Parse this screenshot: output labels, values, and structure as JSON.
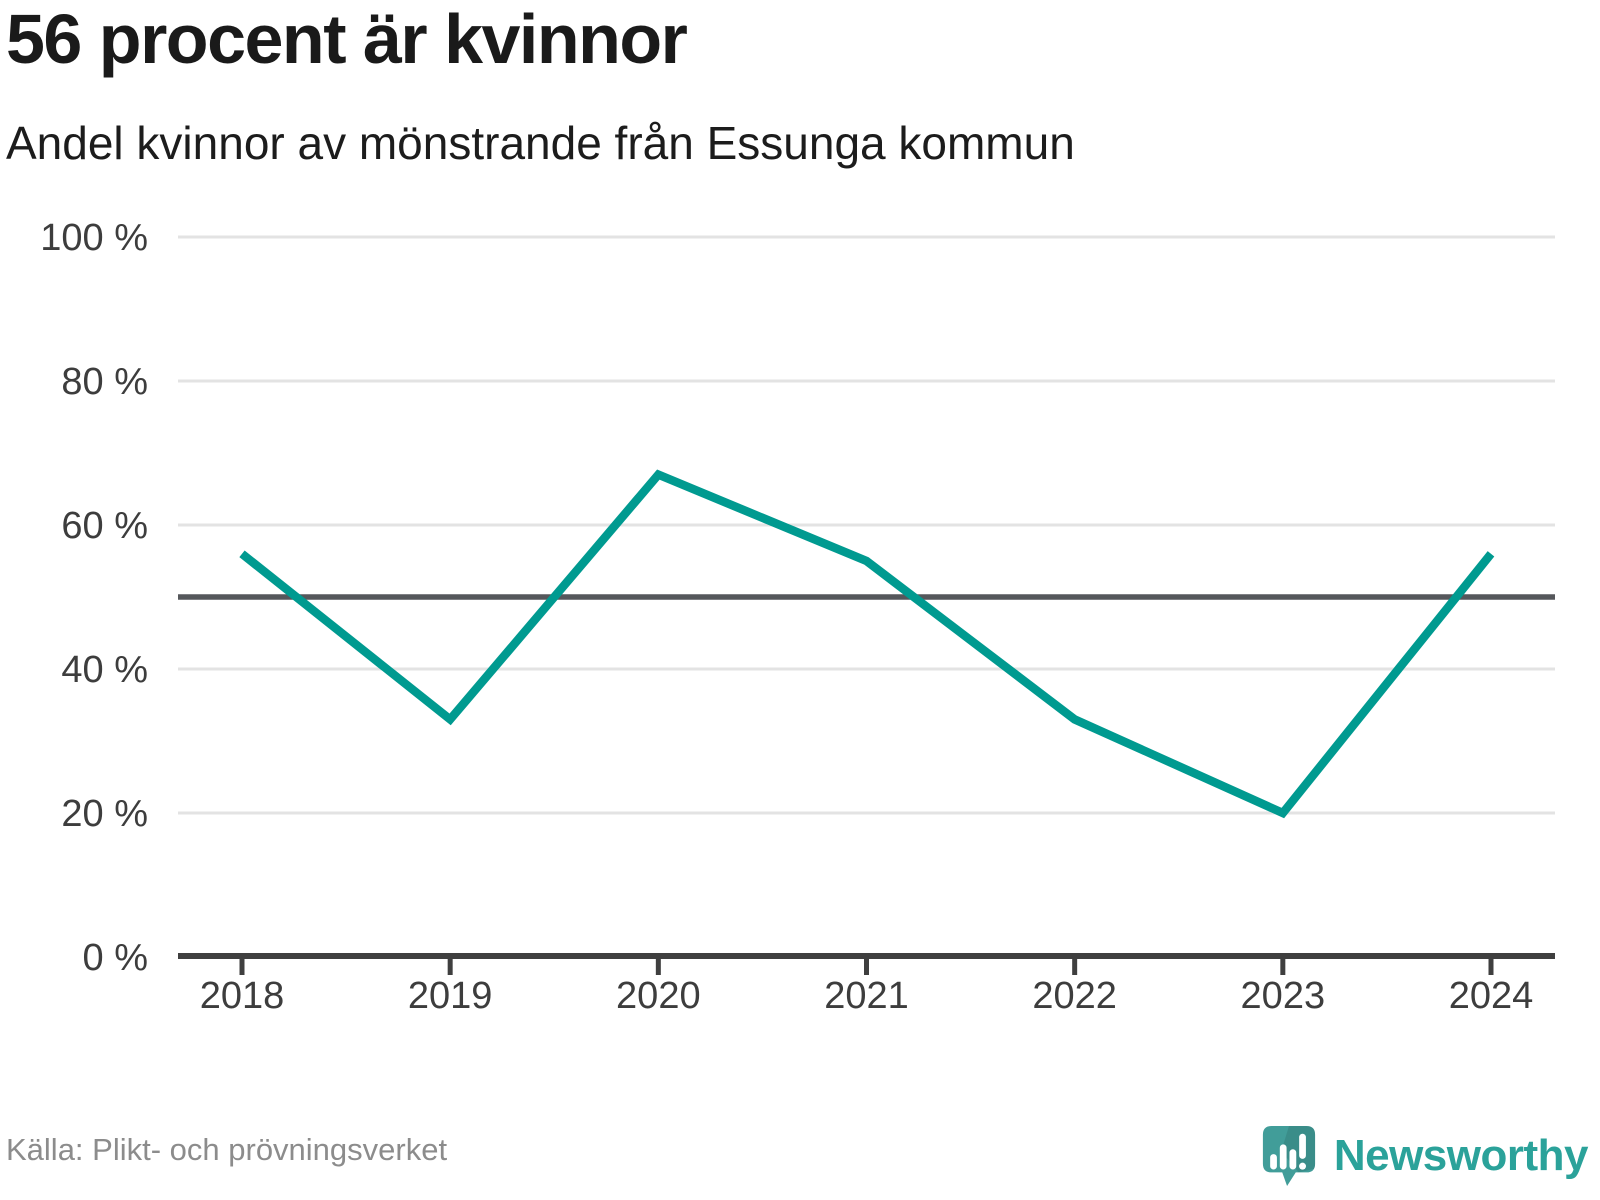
{
  "header": {
    "title": "56 procent är kvinnor",
    "subtitle": "Andel kvinnor av mönstrande från Essunga kommun"
  },
  "chart_data": {
    "type": "line",
    "title": "56 procent är kvinnor",
    "subtitle": "Andel kvinnor av mönstrande från Essunga kommun",
    "x": [
      "2018",
      "2019",
      "2020",
      "2021",
      "2022",
      "2023",
      "2024"
    ],
    "series": [
      {
        "name": "Andel kvinnor av mönstrande",
        "values": [
          56,
          33,
          67,
          55,
          33,
          20,
          56
        ]
      }
    ],
    "unit": "%",
    "ylim": [
      0,
      100
    ],
    "yticks": [
      0,
      20,
      40,
      60,
      80,
      100
    ],
    "ytick_suffix": " %",
    "reference_line": 50,
    "grid": "horizontal",
    "legend": "none",
    "colors": {
      "line": "#009a90",
      "reference": "#55575b",
      "grid": "#e3e3e3",
      "axis": "#3f3f3f",
      "tick_label": "#3d3d3d"
    }
  },
  "footer": {
    "source": "Källa: Plikt- och prövningsverket",
    "brand": "Newsworthy",
    "brand_color": "#2ba29a",
    "icon_color": "#419d99"
  }
}
